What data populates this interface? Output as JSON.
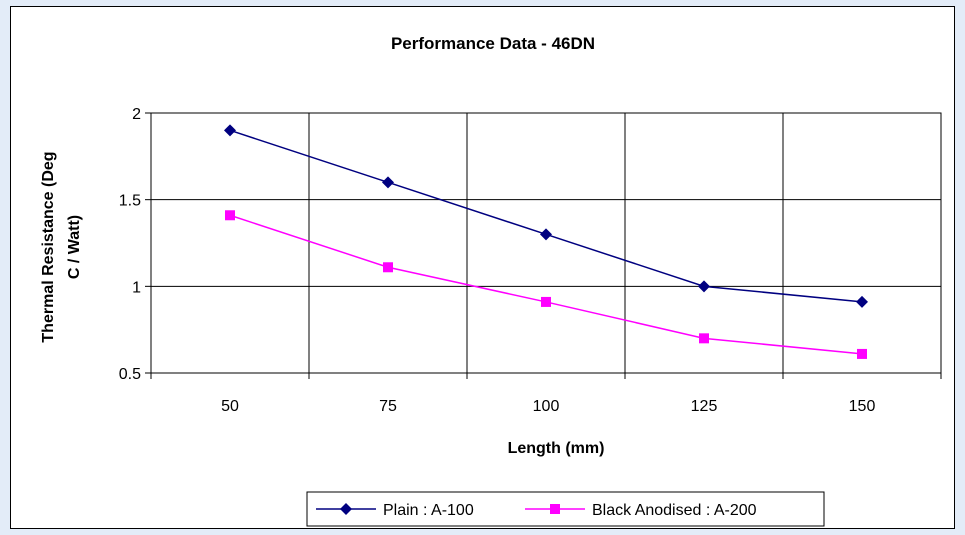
{
  "chart_data": {
    "type": "line",
    "title": "Performance Data - 46DN",
    "xlabel": "Length (mm)",
    "ylabel_lines": [
      "Thermal Resistance (Deg",
      "C / Watt)"
    ],
    "categories": [
      "50",
      "75",
      "100",
      "125",
      "150"
    ],
    "y_ticks": [
      "0.5",
      "1",
      "1.5",
      "2"
    ],
    "ylim": [
      0.5,
      2
    ],
    "grid": true,
    "legend_position": "bottom",
    "series": [
      {
        "name": "Plain : A-100",
        "marker": "diamond",
        "color": "#000080",
        "values": [
          1.9,
          1.6,
          1.3,
          1.0,
          0.91
        ]
      },
      {
        "name": "Black Anodised : A-200",
        "marker": "square",
        "color": "#ff00ff",
        "values": [
          1.41,
          1.11,
          0.91,
          0.7,
          0.61
        ]
      }
    ]
  }
}
